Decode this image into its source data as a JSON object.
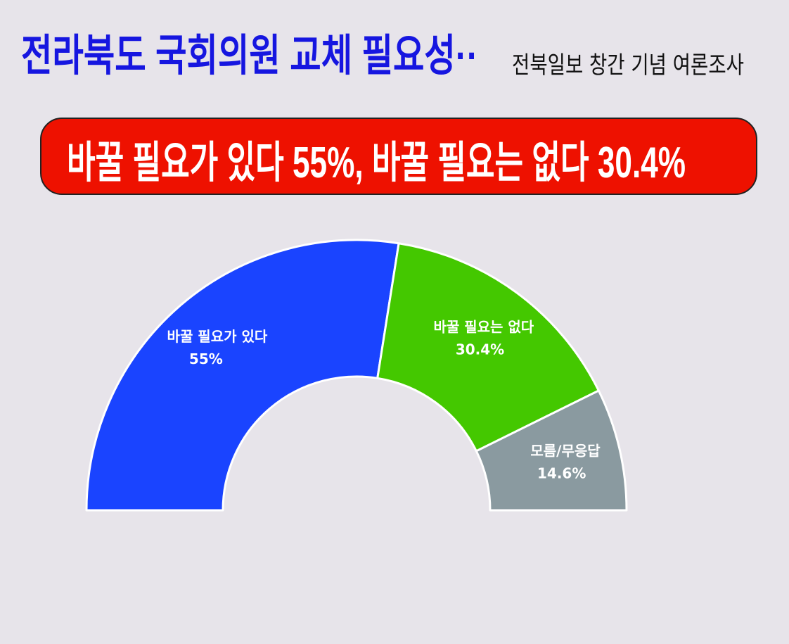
{
  "chart_data": {
    "type": "pie",
    "half": true,
    "title": "전라북도 국회의원 교체 필요성··",
    "subtitle": "전북일보 창간 기념 여론조사",
    "headline": "바꿀 필요가 있다 55%, 바꿀 필요는 없다 30.4%",
    "categories": [
      "바꿀 필요가 있다",
      "바꿀 필요는 없다",
      "모름/무응답"
    ],
    "values": [
      55,
      30.4,
      14.6
    ],
    "value_labels": [
      "55%",
      "30.4%",
      "14.6%"
    ],
    "colors": [
      "#1a44ff",
      "#44c800",
      "#8a9aa0"
    ]
  }
}
